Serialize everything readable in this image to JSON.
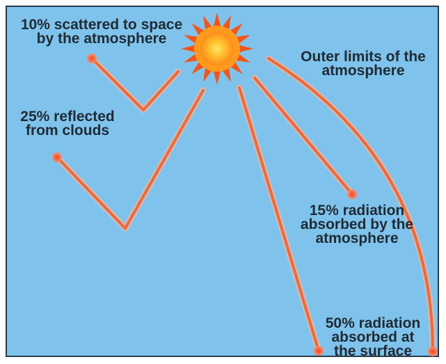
{
  "colors": {
    "sky": "#7fc3ec",
    "sky_edge": "#6bb5e2",
    "ray": "#f07a4c",
    "ray_core": "#e8562c",
    "ray_glow": "#f6b49a",
    "sun_core": "#ffd23a",
    "sun_mid": "#ff9a1e",
    "sun_rays": "#f0561c",
    "text": "#1f2a33"
  },
  "icons": {
    "sun": "sun-icon",
    "arrow_tip": "arrow-tip-icon"
  },
  "labels": {
    "scattered": "10% scattered to space\nby the atmosphere",
    "clouds": "25% reflected\nfrom clouds",
    "outer_limits": "Outer limits of the\natmosphere",
    "absorbed_atmosphere": "15% radiation\nabsorbed by the\natmosphere",
    "absorbed_surface": "50% radiation\nabsorbed at\nthe surface"
  }
}
